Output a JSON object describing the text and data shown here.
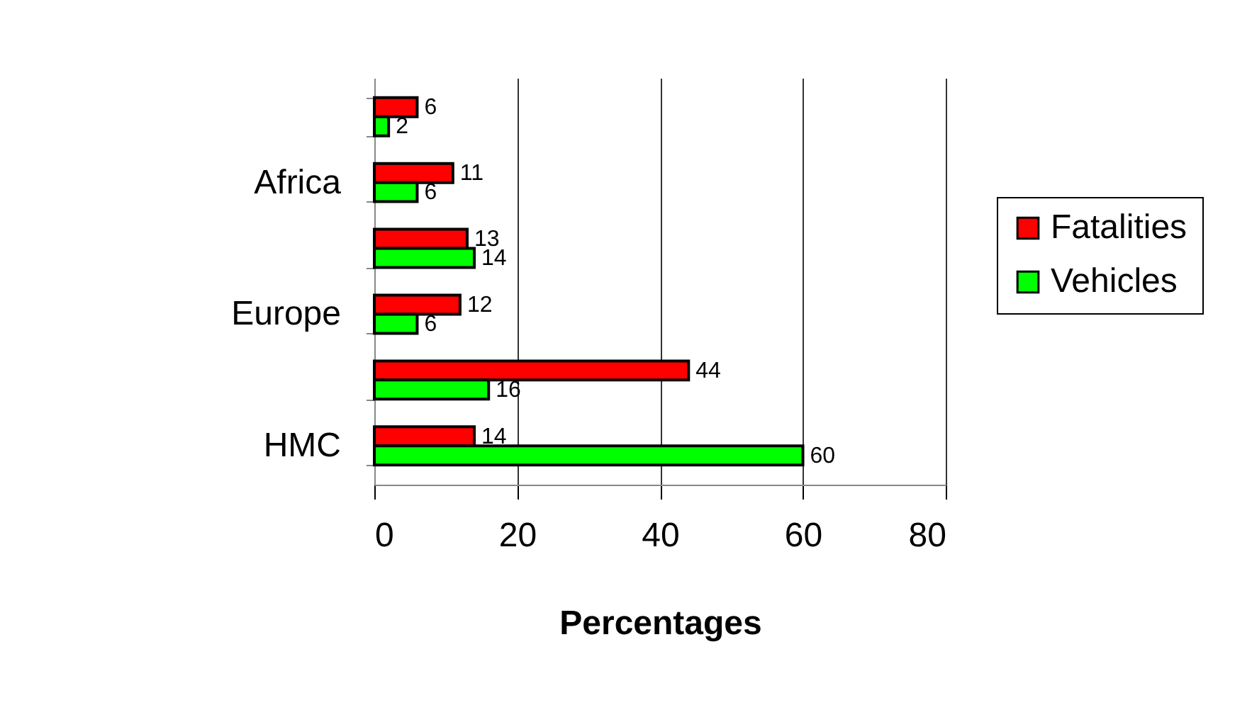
{
  "chart_data": {
    "type": "bar",
    "orientation": "horizontal",
    "categories": [
      null,
      "Africa",
      null,
      "Europe",
      null,
      "HMC"
    ],
    "series": [
      {
        "name": "Fatalities",
        "color": "#ff0000",
        "values": [
          6,
          11,
          13,
          12,
          44,
          14
        ]
      },
      {
        "name": "Vehicles",
        "color": "#00ff00",
        "values": [
          2,
          6,
          14,
          6,
          16,
          60
        ]
      }
    ],
    "xlabel": "Percentages",
    "xlim": [
      0,
      80
    ],
    "xticks": [
      0,
      20,
      40,
      60,
      80
    ],
    "data_labels": true,
    "grid": "x",
    "legend": "right"
  }
}
